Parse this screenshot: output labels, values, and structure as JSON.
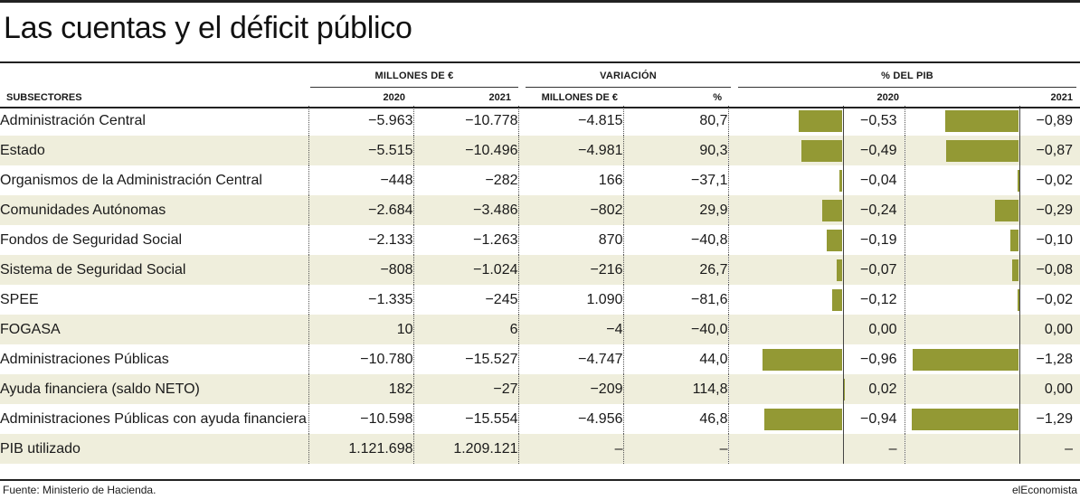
{
  "title": "Las cuentas y el déficit público",
  "headers": {
    "group_millones": "MILLONES DE €",
    "group_variacion": "VARIACIÓN",
    "group_pib": "% DEL PIB",
    "subsectores": "SUBSECTORES",
    "y2020": "2020",
    "y2021": "2021",
    "var_millones": "MILLONES DE €",
    "var_pct": "%",
    "pib2020": "2020",
    "pib2021": "2021"
  },
  "chart_data": {
    "type": "table",
    "columns": [
      "SUBSECTORES",
      "2020",
      "2021",
      "MILLONES DE €",
      "%",
      "2020",
      "2021"
    ],
    "rows": [
      {
        "label": "Administración Central",
        "m2020": "−5.963",
        "m2021": "−10.778",
        "var_m": "−4.815",
        "var_pct": "80,7",
        "pib2020": "−0,53",
        "pib2021": "−0,89",
        "pib2020_value": -0.53,
        "pib2021_value": -0.89
      },
      {
        "label": "Estado",
        "m2020": "−5.515",
        "m2021": "−10.496",
        "var_m": "−4.981",
        "var_pct": "90,3",
        "pib2020": "−0,49",
        "pib2021": "−0,87",
        "pib2020_value": -0.49,
        "pib2021_value": -0.87
      },
      {
        "label": "Organismos de la Administración Central",
        "m2020": "−448",
        "m2021": "−282",
        "var_m": "166",
        "var_pct": "−37,1",
        "pib2020": "−0,04",
        "pib2021": "−0,02",
        "pib2020_value": -0.04,
        "pib2021_value": -0.02
      },
      {
        "label": "Comunidades Autónomas",
        "m2020": "−2.684",
        "m2021": "−3.486",
        "var_m": "−802",
        "var_pct": "29,9",
        "pib2020": "−0,24",
        "pib2021": "−0,29",
        "pib2020_value": -0.24,
        "pib2021_value": -0.29
      },
      {
        "label": "Fondos de Seguridad Social",
        "m2020": "−2.133",
        "m2021": "−1.263",
        "var_m": "870",
        "var_pct": "−40,8",
        "pib2020": "−0,19",
        "pib2021": "−0,10",
        "pib2020_value": -0.19,
        "pib2021_value": -0.1
      },
      {
        "label": "Sistema de Seguridad Social",
        "m2020": "−808",
        "m2021": "−1.024",
        "var_m": "−216",
        "var_pct": "26,7",
        "pib2020": "−0,07",
        "pib2021": "−0,08",
        "pib2020_value": -0.07,
        "pib2021_value": -0.08
      },
      {
        "label": "SPEE",
        "m2020": "−1.335",
        "m2021": "−245",
        "var_m": "1.090",
        "var_pct": "−81,6",
        "pib2020": "−0,12",
        "pib2021": "−0,02",
        "pib2020_value": -0.12,
        "pib2021_value": -0.02
      },
      {
        "label": "FOGASA",
        "m2020": "10",
        "m2021": "6",
        "var_m": "−4",
        "var_pct": "−40,0",
        "pib2020": "0,00",
        "pib2021": "0,00",
        "pib2020_value": 0.0,
        "pib2021_value": 0.0
      },
      {
        "label": "Administraciones Públicas",
        "m2020": "−10.780",
        "m2021": "−15.527",
        "var_m": "−4.747",
        "var_pct": "44,0",
        "pib2020": "−0,96",
        "pib2021": "−1,28",
        "pib2020_value": -0.96,
        "pib2021_value": -1.28
      },
      {
        "label": "Ayuda financiera (saldo NETO)",
        "m2020": "182",
        "m2021": "−27",
        "var_m": "−209",
        "var_pct": "114,8",
        "pib2020": "0,02",
        "pib2021": "0,00",
        "pib2020_value": 0.02,
        "pib2021_value": 0.0
      },
      {
        "label": "Administraciones Públicas con ayuda financiera",
        "m2020": "−10.598",
        "m2021": "−15.554",
        "var_m": "−4.956",
        "var_pct": "46,8",
        "pib2020": "−0,94",
        "pib2021": "−1,29",
        "pib2020_value": -0.94,
        "pib2021_value": -1.29
      },
      {
        "label": "PIB utilizado",
        "m2020": "1.121.698",
        "m2021": "1.209.121",
        "var_m": "–",
        "var_pct": "–",
        "pib2020": "–",
        "pib2021": "–",
        "pib2020_value": null,
        "pib2021_value": null
      }
    ],
    "bar_color": "#939934"
  },
  "footer": {
    "source": "Fuente: Ministerio de Hacienda.",
    "brand": "elEconomista"
  }
}
